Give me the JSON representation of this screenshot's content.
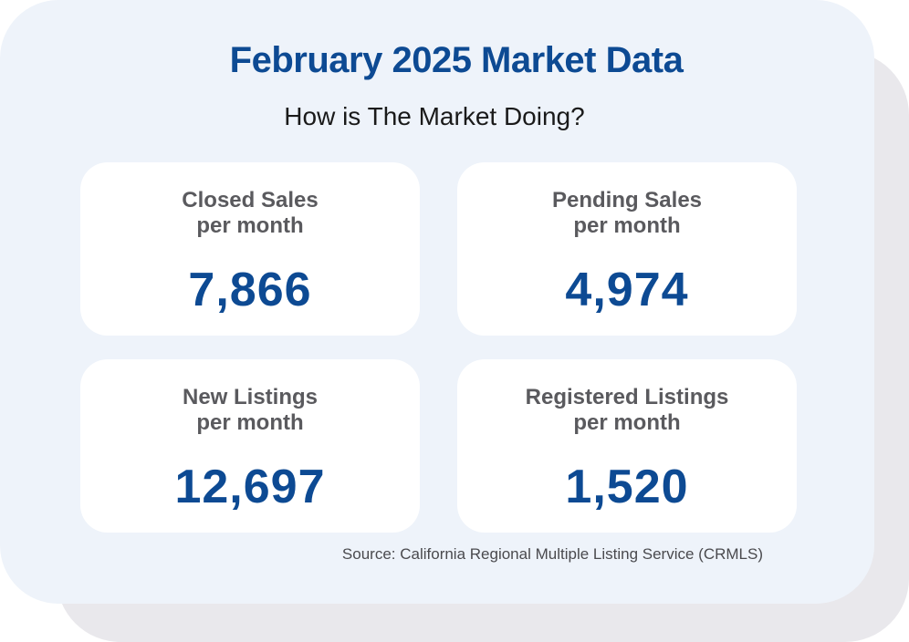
{
  "title": "February 2025 Market Data",
  "subtitle": "How is The Market Doing?",
  "stats": [
    {
      "label_line1": "Closed Sales",
      "label_line2": "per month",
      "value": "7,866"
    },
    {
      "label_line1": "Pending Sales",
      "label_line2": "per month",
      "value": "4,974"
    },
    {
      "label_line1": "New Listings",
      "label_line2": "per month",
      "value": "12,697"
    },
    {
      "label_line1": "Registered Listings",
      "label_line2": "per month",
      "value": "1,520"
    }
  ],
  "source": "Source: California Regional Multiple Listing Service (CRMLS)",
  "colors": {
    "accent": "#0d4a93",
    "panel": "#eef3fa",
    "shadow": "#e9e8ec",
    "label": "#5a5a5e"
  }
}
